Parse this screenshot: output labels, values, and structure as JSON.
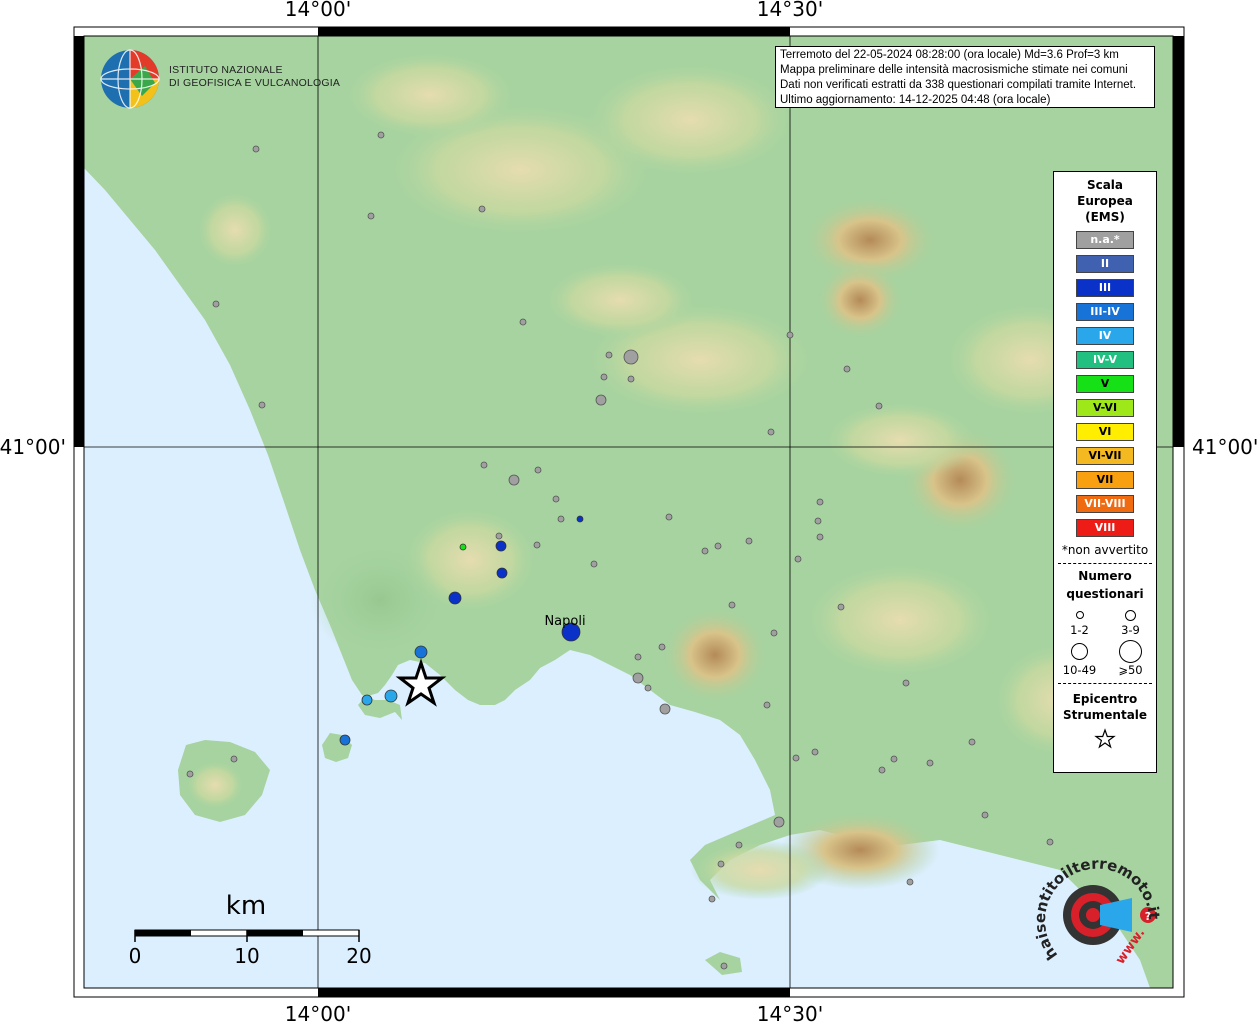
{
  "coordinates": {
    "lon_labels": [
      "14°00'",
      "14°30'"
    ],
    "lat_labels": [
      "41°00'"
    ]
  },
  "info": {
    "line1": "Terremoto del 22-05-2024 08:28:00 (ora locale) Md=3.6 Prof=3 km",
    "line2": "Mappa preliminare delle intensità macrosismiche stimate nei comuni",
    "line3": "Dati non verificati estratti da 338 questionari compilati tramite Internet.",
    "line4": "Ultimo aggiornamento: 14-12-2025 04:48 (ora locale)"
  },
  "institute": {
    "line1": "ISTITUTO NAZIONALE",
    "line2": "DI GEOFISICA E VULCANOLOGIA"
  },
  "city_label": "Napoli",
  "legend": {
    "title_lines": [
      "Scala",
      "Europea",
      "(EMS)"
    ],
    "classes": [
      {
        "label": "n.a.*",
        "color": "#a0a0a0"
      },
      {
        "label": "II",
        "color": "#4060b0"
      },
      {
        "label": "III",
        "color": "#0a32c8"
      },
      {
        "label": "III-IV",
        "color": "#1873d8"
      },
      {
        "label": "IV",
        "color": "#2aa6ea"
      },
      {
        "label": "IV-V",
        "color": "#22c080"
      },
      {
        "label": "V",
        "color": "#16e016"
      },
      {
        "label": "V-VI",
        "color": "#9ee81a"
      },
      {
        "label": "VI",
        "color": "#ffee00"
      },
      {
        "label": "VI-VII",
        "color": "#f4b820"
      },
      {
        "label": "VII",
        "color": "#f8a010"
      },
      {
        "label": "VII-VIII",
        "color": "#f06a10"
      },
      {
        "label": "VIII",
        "color": "#ee1c16"
      }
    ],
    "note": "*non avvertito",
    "count_title_1": "Numero",
    "count_title_2": "questionari",
    "counts": [
      "1-2",
      "3-9",
      "10-49",
      "⩾50"
    ],
    "epicenter_title_1": "Epicentro",
    "epicenter_title_2": "Strumentale"
  },
  "scale_bar": {
    "unit": "km",
    "ticks": [
      "0",
      "10",
      "20"
    ]
  },
  "watermark": {
    "text_main": "haisentitoilterremoto.it",
    "text_prefix": "www."
  },
  "colors": {
    "sea": "#dcefff",
    "land": "#a6d3a0",
    "grid": "#000000",
    "epicenter": "#000000"
  }
}
